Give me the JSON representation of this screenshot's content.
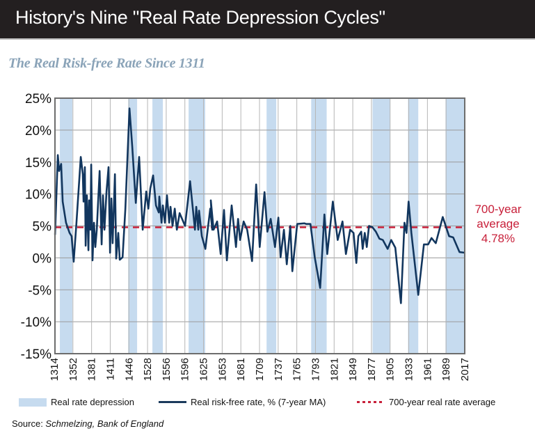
{
  "header": {
    "title": "History's Nine \"Real Rate Depression Cycles\""
  },
  "subtitle": "The Real Risk-free Rate Since 1311",
  "legend": {
    "band_label": "Real rate depression",
    "line_label": "Real risk-free rate, % (7-year MA)",
    "avg_label": "700-year real rate average"
  },
  "source": {
    "prefix": "Source: ",
    "text": "Schmelzing, Bank of England"
  },
  "colors": {
    "band": "#c6dbef",
    "line": "#12365e",
    "average": "#c8203a",
    "header_bg": "#231f20",
    "subtitle": "#8aa3b8"
  },
  "chart_data": {
    "type": "line",
    "title": "The Real Risk-free Rate Since 1311",
    "xlabel": "",
    "ylabel": "",
    "ylim": [
      -15,
      25
    ],
    "yticks": [
      25,
      20,
      15,
      10,
      5,
      0,
      -5,
      -10,
      -15
    ],
    "ytick_labels": [
      "25%",
      "20%",
      "15%",
      "10%",
      "5%",
      "0%",
      "-5%",
      "-10%",
      "-15%"
    ],
    "categories": [
      "1314",
      "1352",
      "1381",
      "1411",
      "1446",
      "1528",
      "1556",
      "1596",
      "1625",
      "1653",
      "1681",
      "1709",
      "1737",
      "1765",
      "1793",
      "1821",
      "1849",
      "1877",
      "1905",
      "1933",
      "1961",
      "1989",
      "2017"
    ],
    "grid": true,
    "average": {
      "value": 4.78,
      "label_lines": [
        "700-year",
        "average",
        "4.78%"
      ]
    },
    "depression_bands_idx": [
      [
        0.3,
        0.97
      ],
      [
        3.96,
        4.44
      ],
      [
        5.26,
        5.82
      ],
      [
        7.2,
        8.09
      ],
      [
        11.38,
        11.9
      ],
      [
        13.77,
        14.6
      ],
      [
        17.06,
        17.99
      ],
      [
        18.96,
        19.51
      ],
      [
        20.97,
        22.0
      ]
    ],
    "series": [
      {
        "name": "Real risk-free rate, % (7-year MA)",
        "points_idx_value": [
          [
            0.04,
            3.6
          ],
          [
            0.19,
            16.1
          ],
          [
            0.26,
            13.6
          ],
          [
            0.37,
            14.7
          ],
          [
            0.45,
            8.8
          ],
          [
            0.63,
            5.5
          ],
          [
            0.82,
            3.9
          ],
          [
            0.93,
            3.4
          ],
          [
            1.04,
            -0.6
          ],
          [
            1.19,
            5.5
          ],
          [
            1.42,
            15.8
          ],
          [
            1.53,
            13.1
          ],
          [
            1.57,
            8.8
          ],
          [
            1.64,
            14.2
          ],
          [
            1.68,
            1.9
          ],
          [
            1.75,
            9.8
          ],
          [
            1.83,
            1.2
          ],
          [
            1.87,
            9.0
          ],
          [
            1.94,
            4.4
          ],
          [
            1.98,
            14.6
          ],
          [
            2.05,
            -0.4
          ],
          [
            2.13,
            5.5
          ],
          [
            2.2,
            1.7
          ],
          [
            2.28,
            4.4
          ],
          [
            2.43,
            13.6
          ],
          [
            2.54,
            2.1
          ],
          [
            2.61,
            9.8
          ],
          [
            2.69,
            4.4
          ],
          [
            2.8,
            10.4
          ],
          [
            2.91,
            14.2
          ],
          [
            2.99,
            0.8
          ],
          [
            3.06,
            9.3
          ],
          [
            3.13,
            2.3
          ],
          [
            3.25,
            13.1
          ],
          [
            3.32,
            -0.1
          ],
          [
            3.43,
            3.9
          ],
          [
            3.51,
            -0.3
          ],
          [
            3.66,
            0.1
          ],
          [
            3.81,
            7.7
          ],
          [
            4.03,
            23.4
          ],
          [
            4.18,
            17.4
          ],
          [
            4.37,
            8.6
          ],
          [
            4.55,
            15.8
          ],
          [
            4.74,
            4.4
          ],
          [
            4.93,
            10.4
          ],
          [
            5.04,
            7.7
          ],
          [
            5.15,
            10.9
          ],
          [
            5.3,
            12.9
          ],
          [
            5.45,
            8.2
          ],
          [
            5.6,
            7.1
          ],
          [
            5.63,
            9.6
          ],
          [
            5.75,
            5.5
          ],
          [
            5.82,
            8.2
          ],
          [
            5.93,
            5.5
          ],
          [
            6.04,
            9.8
          ],
          [
            6.16,
            5.5
          ],
          [
            6.23,
            8.0
          ],
          [
            6.34,
            5.0
          ],
          [
            6.46,
            7.7
          ],
          [
            6.57,
            4.4
          ],
          [
            6.72,
            7.0
          ],
          [
            7.01,
            5.0
          ],
          [
            7.28,
            12.0
          ],
          [
            7.54,
            4.4
          ],
          [
            7.61,
            8.0
          ],
          [
            7.72,
            4.4
          ],
          [
            7.76,
            7.4
          ],
          [
            7.91,
            3.4
          ],
          [
            8.1,
            1.4
          ],
          [
            8.36,
            7.7
          ],
          [
            8.47,
            4.4
          ],
          [
            8.39,
            9.0
          ],
          [
            8.54,
            4.4
          ],
          [
            8.73,
            5.7
          ],
          [
            8.92,
            0.6
          ],
          [
            9.1,
            7.5
          ],
          [
            9.25,
            -0.4
          ],
          [
            9.51,
            8.2
          ],
          [
            9.74,
            1.7
          ],
          [
            9.85,
            6.1
          ],
          [
            9.96,
            2.8
          ],
          [
            10.15,
            5.7
          ],
          [
            10.34,
            4.4
          ],
          [
            10.6,
            -0.5
          ],
          [
            10.82,
            11.5
          ],
          [
            11.01,
            1.7
          ],
          [
            11.27,
            10.3
          ],
          [
            11.42,
            4.1
          ],
          [
            11.6,
            6.1
          ],
          [
            11.83,
            1.7
          ],
          [
            12.01,
            6.3
          ],
          [
            12.13,
            0.1
          ],
          [
            12.31,
            4.4
          ],
          [
            12.46,
            -1.0
          ],
          [
            12.65,
            5.0
          ],
          [
            12.76,
            -2.1
          ],
          [
            13.02,
            5.3
          ],
          [
            13.4,
            5.4
          ],
          [
            13.51,
            5.3
          ],
          [
            13.73,
            5.3
          ],
          [
            13.96,
            0.1
          ],
          [
            14.25,
            -4.7
          ],
          [
            14.48,
            6.8
          ],
          [
            14.63,
            0.6
          ],
          [
            14.93,
            8.8
          ],
          [
            15.19,
            2.8
          ],
          [
            15.45,
            5.7
          ],
          [
            15.63,
            0.6
          ],
          [
            15.86,
            4.4
          ],
          [
            16.04,
            3.9
          ],
          [
            16.19,
            -0.8
          ],
          [
            16.3,
            3.4
          ],
          [
            16.45,
            4.1
          ],
          [
            16.53,
            1.4
          ],
          [
            16.64,
            3.9
          ],
          [
            16.75,
            1.7
          ],
          [
            16.87,
            5.0
          ],
          [
            17.05,
            4.8
          ],
          [
            17.24,
            4.1
          ],
          [
            17.43,
            3.0
          ],
          [
            17.61,
            2.8
          ],
          [
            17.87,
            1.4
          ],
          [
            18.06,
            2.8
          ],
          [
            18.28,
            1.6
          ],
          [
            18.58,
            -7.1
          ],
          [
            18.77,
            5.5
          ],
          [
            18.88,
            3.9
          ],
          [
            18.99,
            8.8
          ],
          [
            19.14,
            3.9
          ],
          [
            19.51,
            -5.8
          ],
          [
            19.81,
            2.1
          ],
          [
            20.04,
            2.1
          ],
          [
            20.22,
            3.1
          ],
          [
            20.45,
            2.3
          ],
          [
            20.82,
            6.4
          ],
          [
            21.16,
            3.4
          ],
          [
            21.38,
            3.2
          ],
          [
            21.72,
            0.9
          ],
          [
            22.0,
            0.8
          ]
        ]
      }
    ]
  }
}
